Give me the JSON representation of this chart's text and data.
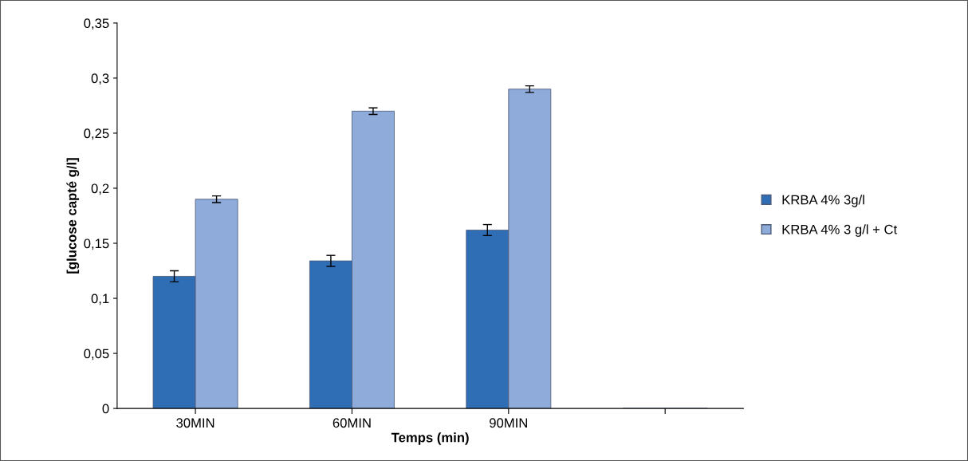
{
  "chart_data": {
    "type": "bar",
    "xlabel": "Temps (min)",
    "ylabel": "[glucose capté g/l]",
    "categories": [
      "30MIN",
      "60MIN",
      "90MIN",
      null
    ],
    "series": [
      {
        "name": "KRBA 4% 3g/l",
        "color": "#2f6db5",
        "values": [
          0.12,
          0.134,
          0.162,
          null
        ],
        "errors": [
          0.005,
          0.005,
          0.005,
          null
        ]
      },
      {
        "name": "KRBA 4% 3 g/l + Ct",
        "color": "#8fabd9",
        "values": [
          0.19,
          0.27,
          0.29,
          null
        ],
        "errors": [
          0.003,
          0.003,
          0.003,
          null
        ]
      }
    ],
    "ylim": [
      0,
      0.35
    ],
    "yticks": [
      {
        "value": 0,
        "label": "0"
      },
      {
        "value": 0.05,
        "label": "0,05"
      },
      {
        "value": 0.1,
        "label": "0,1"
      },
      {
        "value": 0.15,
        "label": "0,15"
      },
      {
        "value": 0.2,
        "label": "0,2"
      },
      {
        "value": 0.25,
        "label": "0,25"
      },
      {
        "value": 0.3,
        "label": "0,3"
      },
      {
        "value": 0.35,
        "label": "0,35"
      }
    ],
    "grid": false,
    "legend": "right"
  }
}
